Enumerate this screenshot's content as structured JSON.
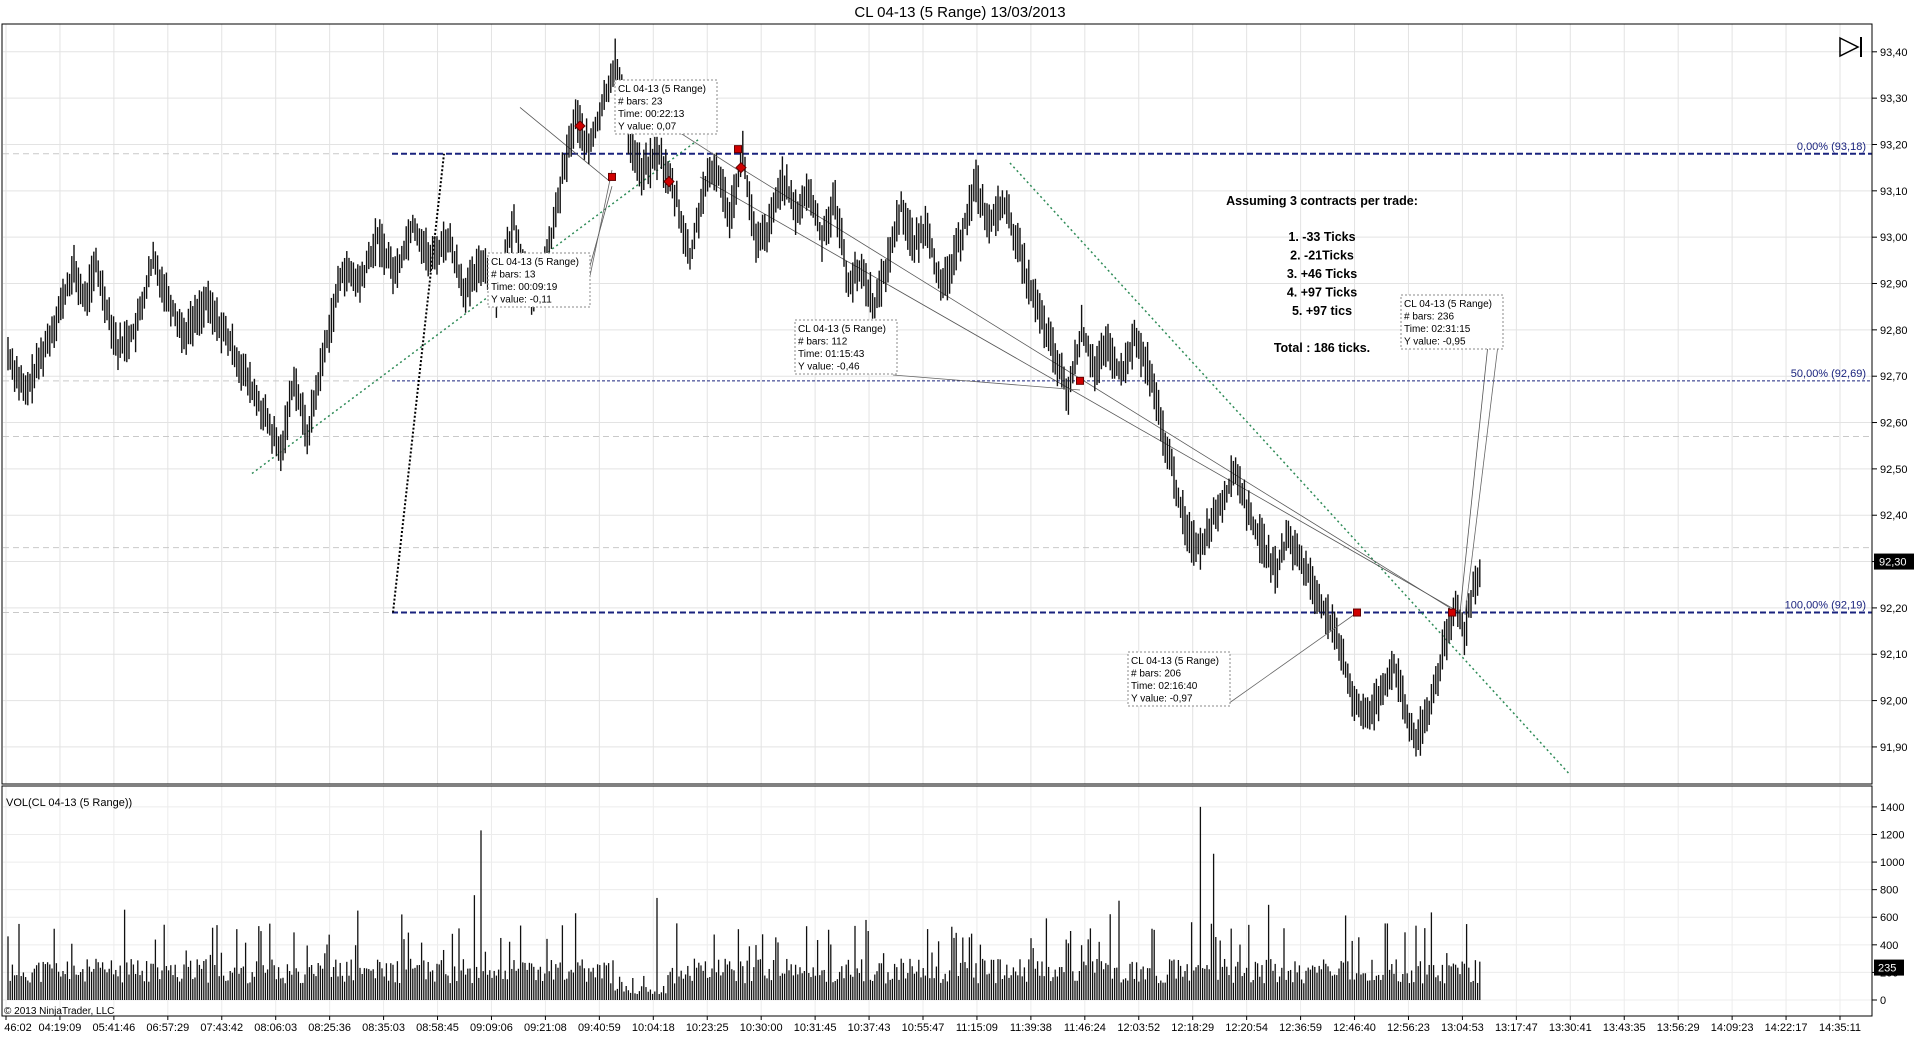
{
  "window": {
    "title": "CL 04-13 (5 Range)  13/03/2013",
    "copyright": "© 2013 NinjaTrader, LLC",
    "last_price_badge": "92,30",
    "volume_badge": "235"
  },
  "chart_data": [
    {
      "type": "candlestick",
      "instrument": "CL 04-13 (5 Range)",
      "y_ticks": [
        "93,40",
        "93,30",
        "93,20",
        "93,10",
        "93,00",
        "92,90",
        "92,80",
        "92,70",
        "92,60",
        "92,50",
        "92,40",
        "92,30",
        "92,20",
        "92,10",
        "92,00",
        "91,90"
      ],
      "ylim": [
        91.82,
        93.46
      ],
      "x_ticks": [
        "46:02",
        "04:19:09",
        "05:41:46",
        "06:57:29",
        "07:43:42",
        "08:06:03",
        "08:25:36",
        "08:35:03",
        "08:58:45",
        "09:09:06",
        "09:21:08",
        "09:40:59",
        "10:04:18",
        "10:23:25",
        "10:30:00",
        "10:31:45",
        "10:37:43",
        "10:55:47",
        "11:15:09",
        "11:39:38",
        "11:46:24",
        "12:03:52",
        "12:18:29",
        "12:20:54",
        "12:36:59",
        "12:46:40",
        "12:56:23",
        "13:04:53",
        "13:17:47",
        "13:30:41",
        "13:43:35",
        "13:56:29",
        "14:09:23",
        "14:22:17",
        "14:35:11"
      ],
      "price_path": [
        [
          0,
          92.75
        ],
        [
          8,
          92.66
        ],
        [
          20,
          92.8
        ],
        [
          30,
          92.93
        ],
        [
          35,
          92.86
        ],
        [
          40,
          92.94
        ],
        [
          50,
          92.76
        ],
        [
          58,
          92.8
        ],
        [
          66,
          92.95
        ],
        [
          72,
          92.88
        ],
        [
          80,
          92.79
        ],
        [
          90,
          92.86
        ],
        [
          100,
          92.78
        ],
        [
          110,
          92.68
        ],
        [
          118,
          92.6
        ],
        [
          124,
          92.53
        ],
        [
          130,
          92.7
        ],
        [
          136,
          92.57
        ],
        [
          144,
          92.76
        ],
        [
          152,
          92.93
        ],
        [
          160,
          92.9
        ],
        [
          168,
          93.0
        ],
        [
          176,
          92.92
        ],
        [
          184,
          93.03
        ],
        [
          192,
          92.95
        ],
        [
          200,
          93.0
        ],
        [
          208,
          92.88
        ],
        [
          216,
          92.95
        ],
        [
          222,
          92.88
        ],
        [
          230,
          93.03
        ],
        [
          238,
          92.87
        ],
        [
          246,
          92.97
        ],
        [
          252,
          93.13
        ],
        [
          258,
          93.26
        ],
        [
          264,
          93.19
        ],
        [
          270,
          93.28
        ],
        [
          276,
          93.38
        ],
        [
          282,
          93.22
        ],
        [
          288,
          93.14
        ],
        [
          296,
          93.18
        ],
        [
          304,
          93.08
        ],
        [
          310,
          92.95
        ],
        [
          316,
          93.1
        ],
        [
          322,
          93.15
        ],
        [
          328,
          93.05
        ],
        [
          334,
          93.18
        ],
        [
          340,
          92.98
        ],
        [
          346,
          93.02
        ],
        [
          352,
          93.13
        ],
        [
          358,
          93.05
        ],
        [
          364,
          93.1
        ],
        [
          370,
          93.0
        ],
        [
          376,
          93.08
        ],
        [
          382,
          92.9
        ],
        [
          388,
          92.93
        ],
        [
          394,
          92.85
        ],
        [
          400,
          92.95
        ],
        [
          406,
          93.07
        ],
        [
          412,
          92.98
        ],
        [
          418,
          93.03
        ],
        [
          424,
          92.88
        ],
        [
          430,
          92.95
        ],
        [
          436,
          93.05
        ],
        [
          440,
          93.12
        ],
        [
          446,
          93.02
        ],
        [
          452,
          93.08
        ],
        [
          458,
          93.0
        ],
        [
          464,
          92.9
        ],
        [
          470,
          92.82
        ],
        [
          476,
          92.74
        ],
        [
          482,
          92.66
        ],
        [
          488,
          92.8
        ],
        [
          494,
          92.72
        ],
        [
          500,
          92.76
        ],
        [
          506,
          92.7
        ],
        [
          512,
          92.78
        ],
        [
          518,
          92.72
        ],
        [
          524,
          92.6
        ],
        [
          530,
          92.48
        ],
        [
          536,
          92.36
        ],
        [
          542,
          92.33
        ],
        [
          548,
          92.4
        ],
        [
          554,
          92.45
        ],
        [
          558,
          92.5
        ],
        [
          564,
          92.4
        ],
        [
          570,
          92.34
        ],
        [
          576,
          92.28
        ],
        [
          582,
          92.35
        ],
        [
          588,
          92.3
        ],
        [
          594,
          92.24
        ],
        [
          600,
          92.18
        ],
        [
          606,
          92.1
        ],
        [
          612,
          92.0
        ],
        [
          618,
          91.96
        ],
        [
          624,
          92.02
        ],
        [
          630,
          92.08
        ],
        [
          636,
          91.96
        ],
        [
          640,
          91.91
        ],
        [
          646,
          91.98
        ],
        [
          652,
          92.1
        ],
        [
          658,
          92.2
        ],
        [
          662,
          92.15
        ],
        [
          666,
          92.24
        ],
        [
          670,
          92.3
        ]
      ],
      "fib_levels": [
        {
          "label": "0,00% (93,18)",
          "price": 93.18
        },
        {
          "label": "50,00% (92,69)",
          "price": 92.69
        },
        {
          "label": "100,00% (92,19)",
          "price": 92.19
        }
      ],
      "info_boxes": [
        {
          "lines": [
            "CL 04-13 (5 Range)",
            "# bars:   23",
            "Time:    00:22:13",
            "Y value: 0,07"
          ]
        },
        {
          "lines": [
            "CL 04-13 (5 Range)",
            "# bars:   13",
            "Time:    00:09:19",
            "Y value: -0,11"
          ]
        },
        {
          "lines": [
            "CL 04-13 (5 Range)",
            "# bars:   112",
            "Time:    01:15:43",
            "Y value: -0,46"
          ]
        },
        {
          "lines": [
            "CL 04-13 (5 Range)",
            "# bars:   236",
            "Time:    02:31:15",
            "Y value: -0,95"
          ]
        },
        {
          "lines": [
            "CL 04-13 (5 Range)",
            "# bars:   206",
            "Time:    02:16:40",
            "Y value: -0,97"
          ]
        }
      ],
      "annotation": {
        "heading": "Assuming 3 contracts per trade:",
        "items": [
          "1.  -33 Ticks",
          "2.  -21Ticks",
          "3.  +46 Ticks",
          "4.  +97 Ticks",
          "5.  +97 tics"
        ],
        "total": "Total : 186 ticks."
      }
    },
    {
      "type": "bar",
      "series_label": "VOL(CL 04-13 (5 Range))",
      "y_ticks": [
        "1400",
        "1200",
        "1000",
        "800",
        "600",
        "400",
        "200",
        "0"
      ],
      "ylim": [
        0,
        1450
      ],
      "notable_bars": [
        1230,
        1400,
        1060,
        760,
        740,
        720,
        690
      ]
    }
  ]
}
